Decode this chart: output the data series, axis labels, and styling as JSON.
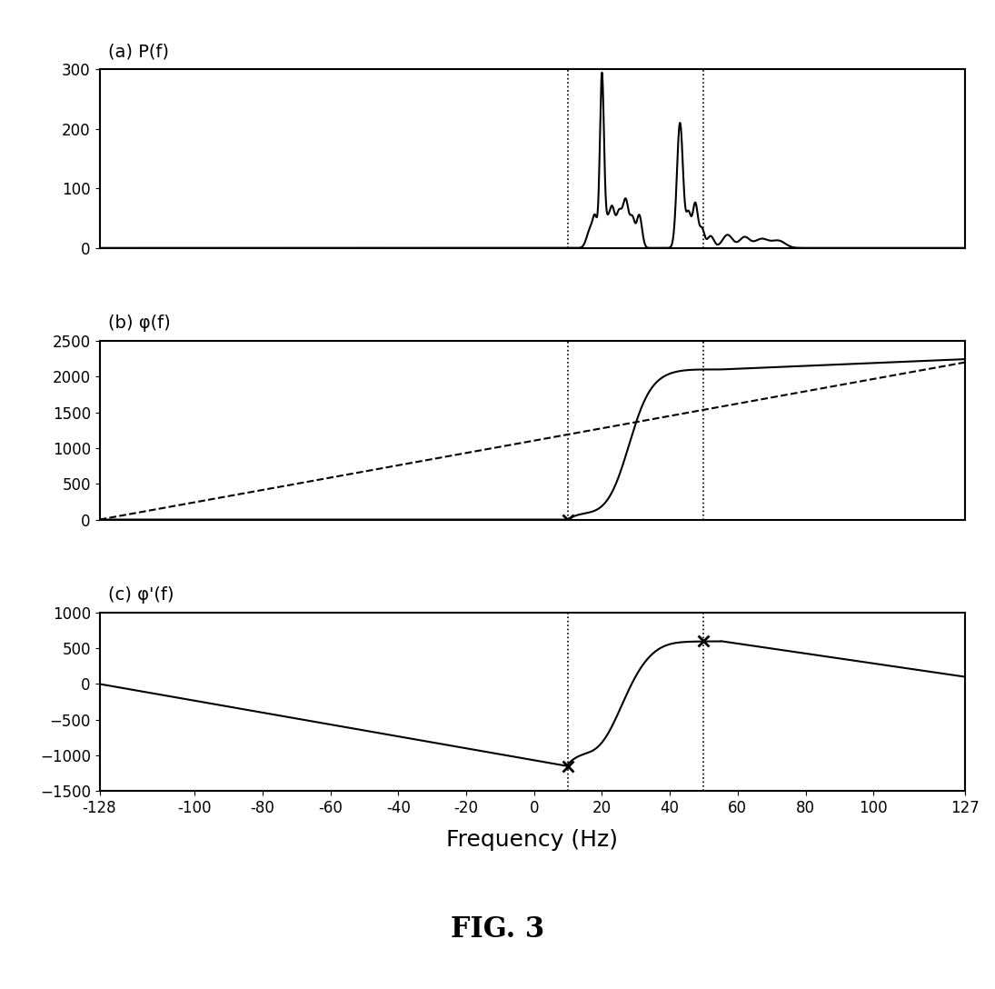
{
  "xlim": [
    -128,
    127
  ],
  "xticks": [
    -128,
    -100,
    -80,
    -60,
    -40,
    -20,
    0,
    20,
    40,
    60,
    80,
    100,
    127
  ],
  "xtick_labels": [
    "-128",
    "-100",
    "-80",
    "-60",
    "-40",
    "-20",
    "0",
    "20",
    "40",
    "60",
    "80",
    "100",
    "127"
  ],
  "xlabel": "Frequency (Hz)",
  "vline1": 10,
  "vline2": 50,
  "panel_a": {
    "label": "(a) P(f)",
    "ylim": [
      0,
      300
    ],
    "yticks": [
      0,
      100,
      200,
      300
    ]
  },
  "panel_b": {
    "label": "(b) φ(f)",
    "ylim": [
      0,
      2500
    ],
    "yticks": [
      0,
      500,
      1000,
      1500,
      2000,
      2500
    ],
    "marker_x": 10,
    "marker_y": 0,
    "dash_x0": -128,
    "dash_y0": 0,
    "dash_x1": 127,
    "dash_y1": 2200
  },
  "panel_c": {
    "label": "(c) φ'(f)",
    "ylim": [
      -1500,
      1000
    ],
    "yticks": [
      -1500,
      -1000,
      -500,
      0,
      500,
      1000
    ],
    "marker1_x": 10,
    "marker1_y": -1150,
    "marker2_x": 50,
    "marker2_y": 600
  },
  "fig_label": "FIG. 3",
  "line_color": "black",
  "background_color": "white"
}
